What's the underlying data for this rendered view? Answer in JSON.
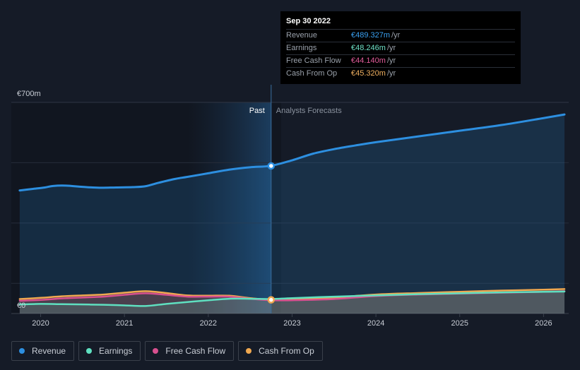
{
  "tooltip": {
    "date": "Sep 30 2022",
    "rows": [
      {
        "label": "Revenue",
        "value": "€489.327m",
        "unit": "/yr",
        "color": "#3aa0f0"
      },
      {
        "label": "Earnings",
        "value": "€48.246m",
        "unit": "/yr",
        "color": "#6fe3c8"
      },
      {
        "label": "Free Cash Flow",
        "value": "€44.140m",
        "unit": "/yr",
        "color": "#e25b9a"
      },
      {
        "label": "Cash From Op",
        "value": "€45.320m",
        "unit": "/yr",
        "color": "#f0b060"
      }
    ]
  },
  "legend": [
    {
      "label": "Revenue",
      "color": "#2d8fe0"
    },
    {
      "label": "Earnings",
      "color": "#5fe0c0"
    },
    {
      "label": "Free Cash Flow",
      "color": "#d8508f"
    },
    {
      "label": "Cash From Op",
      "color": "#f0a850"
    }
  ],
  "chart_data": {
    "type": "line",
    "y_top_label": "€700m",
    "y_bottom_label": "€0",
    "ylim": [
      0,
      700
    ],
    "xlim": [
      2019.65,
      2026.3
    ],
    "past_label": "Past",
    "forecast_label": "Analysts Forecasts",
    "divider_x": 2022.75,
    "highlight_start": 2021.75,
    "x_ticks": [
      {
        "value": 2020,
        "label": "2020"
      },
      {
        "value": 2021,
        "label": "2021"
      },
      {
        "value": 2022,
        "label": "2022"
      },
      {
        "value": 2023,
        "label": "2023"
      },
      {
        "value": 2024,
        "label": "2024"
      },
      {
        "value": 2025,
        "label": "2025"
      },
      {
        "value": 2026,
        "label": "2026"
      }
    ],
    "series": [
      {
        "name": "Revenue",
        "color": "#2d8fe0",
        "fill": true,
        "x": [
          2019.75,
          2019.9,
          2020.05,
          2020.15,
          2020.3,
          2020.5,
          2020.7,
          2020.9,
          2021.1,
          2021.25,
          2021.4,
          2021.6,
          2021.75,
          2022.0,
          2022.25,
          2022.5,
          2022.75,
          2023.0,
          2023.25,
          2023.5,
          2023.75,
          2024.0,
          2024.5,
          2025.0,
          2025.5,
          2026.0,
          2026.25
        ],
        "values": [
          408,
          413,
          418,
          423,
          424,
          420,
          417,
          418,
          419,
          422,
          433,
          446,
          453,
          465,
          477,
          485,
          490,
          508,
          530,
          545,
          557,
          568,
          587,
          606,
          625,
          648,
          660
        ]
      },
      {
        "name": "Cash From Op",
        "color": "#f0a850",
        "fill": true,
        "x": [
          2019.75,
          2020.0,
          2020.25,
          2020.5,
          2020.75,
          2021.0,
          2021.25,
          2021.5,
          2021.75,
          2022.0,
          2022.25,
          2022.5,
          2022.75,
          2023.0,
          2023.5,
          2024.0,
          2024.5,
          2025.0,
          2025.5,
          2026.0,
          2026.25
        ],
        "values": [
          48,
          52,
          57,
          60,
          63,
          69,
          74,
          68,
          60,
          59,
          59,
          51,
          45,
          47,
          53,
          63,
          68,
          72,
          76,
          79,
          81
        ]
      },
      {
        "name": "Free Cash Flow",
        "color": "#d8508f",
        "fill": true,
        "x": [
          2019.75,
          2020.0,
          2020.25,
          2020.5,
          2020.75,
          2021.0,
          2021.25,
          2021.5,
          2021.75,
          2022.0,
          2022.25,
          2022.5,
          2022.75,
          2023.0,
          2023.5,
          2024.0,
          2024.5,
          2025.0,
          2025.5,
          2026.0,
          2026.25
        ],
        "values": [
          42,
          45,
          50,
          53,
          56,
          62,
          67,
          62,
          56,
          56,
          56,
          49,
          44,
          44,
          48,
          58,
          63,
          66,
          69,
          72,
          74
        ]
      },
      {
        "name": "Earnings",
        "color": "#5fe0c0",
        "fill": true,
        "x": [
          2019.75,
          2020.0,
          2020.25,
          2020.5,
          2020.75,
          2021.0,
          2021.25,
          2021.5,
          2021.75,
          2022.0,
          2022.25,
          2022.5,
          2022.75,
          2023.0,
          2023.5,
          2024.0,
          2024.5,
          2025.0,
          2025.5,
          2026.0,
          2026.25
        ],
        "values": [
          30,
          32,
          31,
          30,
          29,
          27,
          25,
          32,
          38,
          44,
          49,
          49,
          48,
          51,
          56,
          60,
          64,
          67,
          70,
          72,
          73
        ]
      }
    ],
    "highlight_points": [
      {
        "series": "Revenue",
        "x": 2022.75,
        "y": 489.327
      },
      {
        "series": "Cash From Op",
        "x": 2022.75,
        "y": 45.32
      }
    ]
  }
}
